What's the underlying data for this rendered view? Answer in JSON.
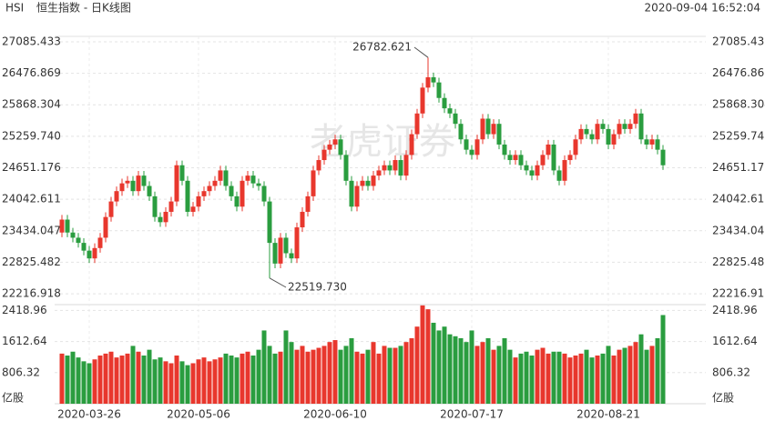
{
  "chart_data": {
    "type": "candlestick",
    "symbol": "HSI",
    "title": "恒生指数 - 日K线图",
    "timestamp": "2020-09-04 16:52:04",
    "watermark": "老虎证券",
    "up_color": "#e8372d",
    "down_color": "#2a9d3f",
    "categories": [
      null,
      null,
      null,
      null,
      null,
      "2020-03-26",
      null,
      null,
      null,
      null,
      null,
      null,
      null,
      null,
      null,
      null,
      null,
      null,
      null,
      null,
      null,
      null,
      null,
      null,
      null,
      "2020-05-06",
      null,
      null,
      null,
      null,
      null,
      null,
      null,
      null,
      null,
      null,
      null,
      null,
      null,
      null,
      null,
      null,
      null,
      null,
      null,
      null,
      null,
      null,
      null,
      null,
      "2020-06-10",
      null,
      null,
      null,
      null,
      null,
      null,
      null,
      null,
      null,
      null,
      null,
      null,
      null,
      null,
      null,
      null,
      null,
      null,
      null,
      null,
      null,
      null,
      null,
      null,
      "2020-07-17",
      null,
      null,
      null,
      null,
      null,
      null,
      null,
      null,
      null,
      null,
      null,
      null,
      null,
      null,
      null,
      null,
      null,
      null,
      null,
      null,
      null,
      null,
      null,
      null,
      "2020-08-21",
      null,
      null,
      null,
      null,
      null,
      null,
      null,
      null,
      null,
      null
    ],
    "open": [
      23400,
      23650,
      23400,
      23300,
      23200,
      23050,
      22900,
      23100,
      23300,
      23700,
      24000,
      24200,
      24350,
      24400,
      24200,
      24500,
      24300,
      24100,
      23700,
      23600,
      23800,
      24000,
      24700,
      24400,
      23800,
      23900,
      24100,
      24200,
      24300,
      24400,
      24600,
      24300,
      24100,
      23900,
      24400,
      24500,
      24350,
      24300,
      24000,
      23200,
      22800,
      23300,
      23000,
      22900,
      23500,
      23800,
      24100,
      24600,
      24800,
      25000,
      25100,
      25200,
      24900,
      24400,
      23900,
      24300,
      24400,
      24300,
      24500,
      24600,
      24700,
      24600,
      24800,
      24500,
      24900,
      25300,
      25700,
      26200,
      26400,
      26300,
      26000,
      25800,
      25700,
      25500,
      25200,
      25000,
      24900,
      25200,
      25600,
      25300,
      25500,
      25100,
      24900,
      24800,
      24900,
      24700,
      24600,
      24500,
      24700,
      24900,
      25100,
      24600,
      24400,
      24800,
      24900,
      25200,
      25400,
      25300,
      25200,
      25500,
      25400,
      25100,
      25300,
      25500,
      25400,
      25500,
      25700,
      25200,
      25100,
      25200,
      25000
    ],
    "high": [
      23740,
      23740,
      23490,
      23390,
      23290,
      23140,
      23190,
      23390,
      23790,
      24090,
      24290,
      24440,
      24490,
      24490,
      24590,
      24590,
      24390,
      24190,
      23790,
      23890,
      24090,
      24790,
      24790,
      24490,
      23990,
      24190,
      24290,
      24390,
      24490,
      24690,
      24690,
      24390,
      24190,
      24490,
      24590,
      24590,
      24440,
      24390,
      24090,
      23290,
      23390,
      23390,
      23090,
      23590,
      23890,
      24190,
      24690,
      24890,
      25090,
      25190,
      25290,
      25290,
      24990,
      24490,
      24390,
      24490,
      24490,
      24590,
      24690,
      24790,
      24790,
      24890,
      24890,
      24990,
      25390,
      25790,
      26290,
      26782.621,
      26490,
      26390,
      26090,
      25890,
      25790,
      25590,
      25290,
      25090,
      25290,
      25690,
      25690,
      25590,
      25590,
      25190,
      24990,
      24990,
      24990,
      24790,
      24690,
      24790,
      24990,
      25190,
      25190,
      24690,
      24890,
      24990,
      25290,
      25490,
      25490,
      25390,
      25590,
      25590,
      25490,
      25390,
      25590,
      25590,
      25590,
      25790,
      25790,
      25290,
      25290,
      25290,
      25090
    ],
    "low": [
      23310,
      23310,
      23210,
      23110,
      22960,
      22810,
      22810,
      23010,
      23210,
      23610,
      23910,
      24110,
      24260,
      24110,
      24110,
      24210,
      24010,
      23610,
      23510,
      23510,
      23710,
      23910,
      24310,
      23710,
      23710,
      23810,
      24010,
      24110,
      24210,
      24310,
      24210,
      24010,
      23810,
      23810,
      24310,
      24260,
      24210,
      23910,
      22519.73,
      22710,
      22710,
      22910,
      22810,
      22810,
      23410,
      23710,
      24010,
      24510,
      24710,
      24910,
      25010,
      24810,
      24310,
      23810,
      23810,
      24210,
      24210,
      24210,
      24410,
      24510,
      24510,
      24510,
      24410,
      24410,
      24810,
      25210,
      25610,
      26110,
      26210,
      25910,
      25710,
      25610,
      25410,
      25110,
      24910,
      24810,
      24810,
      25110,
      25210,
      25210,
      25010,
      24810,
      24710,
      24710,
      24610,
      24510,
      24410,
      24410,
      24610,
      24810,
      24510,
      24310,
      24310,
      24710,
      24810,
      25110,
      25210,
      25110,
      25110,
      25310,
      25010,
      25010,
      25210,
      25310,
      25310,
      25410,
      25110,
      25010,
      25010,
      24910,
      24610
    ],
    "close": [
      23650,
      23400,
      23300,
      23200,
      23050,
      22900,
      23100,
      23300,
      23700,
      24000,
      24200,
      24350,
      24400,
      24200,
      24500,
      24300,
      24100,
      23700,
      23600,
      23800,
      24000,
      24700,
      24400,
      23800,
      23900,
      24100,
      24200,
      24300,
      24400,
      24600,
      24300,
      24100,
      23900,
      24400,
      24500,
      24350,
      24300,
      24000,
      23200,
      22800,
      23300,
      23000,
      22900,
      23500,
      23800,
      24100,
      24600,
      24800,
      25000,
      25100,
      25200,
      24900,
      24400,
      23900,
      24300,
      24400,
      24300,
      24500,
      24600,
      24700,
      24600,
      24800,
      24500,
      24900,
      25300,
      25700,
      26200,
      26400,
      26300,
      26000,
      25800,
      25700,
      25500,
      25200,
      25000,
      24900,
      25200,
      25600,
      25300,
      25500,
      25100,
      24900,
      24800,
      24900,
      24700,
      24600,
      24500,
      24700,
      24900,
      25100,
      24600,
      24400,
      24800,
      24900,
      25200,
      25400,
      25300,
      25200,
      25500,
      25400,
      25100,
      25300,
      25500,
      25400,
      25500,
      25700,
      25200,
      25100,
      25200,
      25000,
      24700
    ],
    "volume": [
      1300,
      1250,
      1350,
      1200,
      1100,
      1050,
      1150,
      1250,
      1300,
      1350,
      1200,
      1250,
      1300,
      1500,
      1350,
      1250,
      1400,
      1150,
      1200,
      1100,
      1050,
      1250,
      1100,
      1000,
      1050,
      1150,
      1200,
      1100,
      1150,
      1200,
      1300,
      1250,
      1200,
      1300,
      1350,
      1250,
      1400,
      1900,
      1500,
      1300,
      1350,
      1900,
      1600,
      1400,
      1500,
      1350,
      1400,
      1450,
      1500,
      1600,
      1650,
      1400,
      1500,
      1700,
      1350,
      1300,
      1400,
      1600,
      1300,
      1500,
      1450,
      1450,
      1500,
      1600,
      1700,
      2000,
      2550,
      2450,
      2100,
      1900,
      2000,
      1800,
      1750,
      1700,
      1600,
      1900,
      1500,
      1600,
      1700,
      1400,
      1500,
      1700,
      1400,
      1200,
      1300,
      1350,
      1250,
      1400,
      1450,
      1300,
      1350,
      1350,
      1300,
      1200,
      1250,
      1300,
      1400,
      1200,
      1250,
      1300,
      1500,
      1250,
      1400,
      1450,
      1500,
      1600,
      1800,
      1400,
      1500,
      1700,
      2300
    ],
    "ylim": [
      22060,
      27190
    ],
    "yticks": [
      22216.918,
      22825.482,
      23434.047,
      24042.611,
      24651.176,
      {
        "value": 25259.74,
        "label": "25259.740"
      },
      25868.304,
      26476.869,
      27085.433
    ],
    "volume_ylim": [
      0,
      2500
    ],
    "volume_ticks": [
      806.32,
      1612.64,
      2418.96
    ],
    "volume_unit": "亿股",
    "annotations": {
      "high": 26782.621,
      "low": {
        "value": 22519.73,
        "label": "22519.730"
      }
    }
  }
}
